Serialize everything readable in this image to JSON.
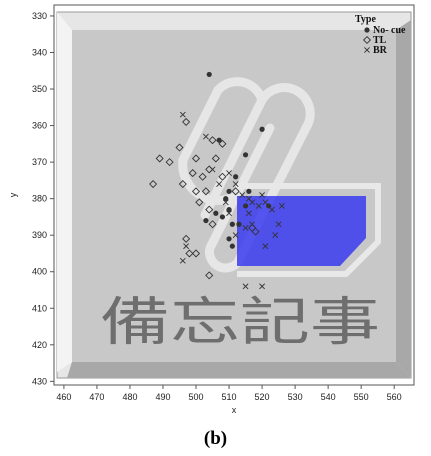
{
  "chart_data": {
    "type": "scatter",
    "xlabel": "x",
    "ylabel": "y",
    "xlim": [
      457,
      566
    ],
    "ylim": [
      327,
      431
    ],
    "y_inverted": true,
    "x_ticks": [
      460,
      470,
      480,
      490,
      500,
      510,
      520,
      530,
      540,
      550,
      560
    ],
    "y_ticks": [
      330,
      340,
      350,
      360,
      370,
      380,
      390,
      400,
      410,
      420,
      430
    ],
    "legend": {
      "title": "Type",
      "position": "top-right",
      "entries": [
        {
          "label": "No- cue",
          "marker": "filled-circle"
        },
        {
          "label": "TL",
          "marker": "open-diamond"
        },
        {
          "label": "BR",
          "marker": "cross"
        }
      ]
    },
    "background_overlay": {
      "note_text": "備忘記事",
      "highlight_color": "#3a3af0",
      "note_color": "#c8c8c8"
    },
    "series": [
      {
        "name": "No- cue",
        "points": [
          [
            504,
            346
          ],
          [
            507,
            364
          ],
          [
            520,
            361
          ],
          [
            515,
            368
          ],
          [
            512,
            374
          ],
          [
            509,
            380
          ],
          [
            510,
            383
          ],
          [
            506,
            384
          ],
          [
            508,
            385
          ],
          [
            503,
            386
          ],
          [
            511,
            387
          ],
          [
            513,
            387
          ],
          [
            510,
            391
          ],
          [
            511,
            393
          ],
          [
            515,
            382
          ],
          [
            522,
            382
          ],
          [
            516,
            378
          ],
          [
            510,
            378
          ]
        ]
      },
      {
        "name": "TL",
        "points": [
          [
            497,
            359
          ],
          [
            495,
            366
          ],
          [
            496,
            376
          ],
          [
            499,
            373
          ],
          [
            500,
            369
          ],
          [
            502,
            374
          ],
          [
            503,
            378
          ],
          [
            500,
            378
          ],
          [
            501,
            381
          ],
          [
            505,
            364
          ],
          [
            508,
            365
          ],
          [
            506,
            369
          ],
          [
            504,
            372
          ],
          [
            489,
            369
          ],
          [
            492,
            370
          ],
          [
            487,
            376
          ],
          [
            504,
            383
          ],
          [
            505,
            387
          ],
          [
            497,
            391
          ],
          [
            498,
            395
          ],
          [
            500,
            395
          ],
          [
            504,
            401
          ],
          [
            517,
            388
          ],
          [
            518,
            389
          ],
          [
            508,
            374
          ],
          [
            512,
            378
          ]
        ]
      },
      {
        "name": "BR",
        "points": [
          [
            496,
            357
          ],
          [
            503,
            363
          ],
          [
            505,
            372
          ],
          [
            507,
            376
          ],
          [
            510,
            373
          ],
          [
            512,
            376
          ],
          [
            514,
            379
          ],
          [
            516,
            380
          ],
          [
            517,
            381
          ],
          [
            519,
            382
          ],
          [
            520,
            379
          ],
          [
            521,
            381
          ],
          [
            523,
            383
          ],
          [
            525,
            387
          ],
          [
            524,
            390
          ],
          [
            526,
            382
          ],
          [
            517,
            387
          ],
          [
            516,
            384
          ],
          [
            515,
            388
          ],
          [
            521,
            393
          ],
          [
            512,
            390
          ],
          [
            497,
            393
          ],
          [
            496,
            397
          ],
          [
            515,
            404
          ],
          [
            520,
            404
          ],
          [
            510,
            384
          ],
          [
            509,
            381
          ]
        ]
      }
    ]
  }
}
